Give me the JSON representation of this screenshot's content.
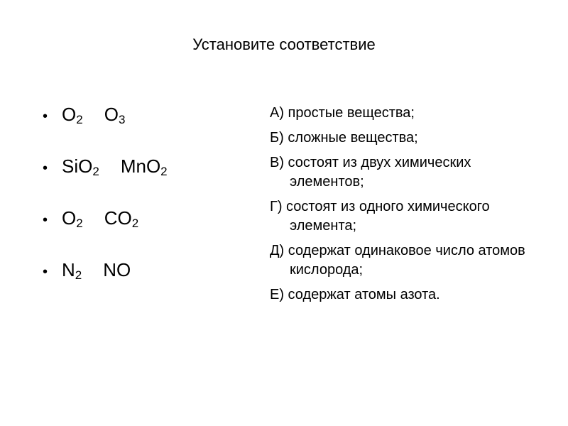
{
  "title": "Установите соответствие",
  "formulas": {
    "row1": {
      "part1_elem": "O",
      "part1_sub": "2",
      "part2_elem": "O",
      "part2_sub": "3"
    },
    "row2": {
      "part1_elem": "SiO",
      "part1_sub": "2",
      "part2_elem": "MnO",
      "part2_sub": "2"
    },
    "row3": {
      "part1_elem": "O",
      "part1_sub": "2",
      "part2_elem": "CO",
      "part2_sub": "2"
    },
    "row4": {
      "part1_elem": "N",
      "part1_sub": "2",
      "part2_elem": "NO",
      "part2_sub": ""
    }
  },
  "options": {
    "a": "А) простые вещества;",
    "b": "Б) сложные вещества;",
    "v": "В) состоят из двух химических элементов;",
    "g": "Г) состоят из одного химического элемента;",
    "d": "Д) содержат одинаковое число атомов кислорода;",
    "e": "Е) содержат атомы азота."
  },
  "colors": {
    "background": "#ffffff",
    "text": "#000000"
  },
  "typography": {
    "title_fontsize": 22,
    "formula_fontsize": 26,
    "option_fontsize": 20,
    "subscript_fontsize": 17,
    "font_family": "Arial"
  }
}
